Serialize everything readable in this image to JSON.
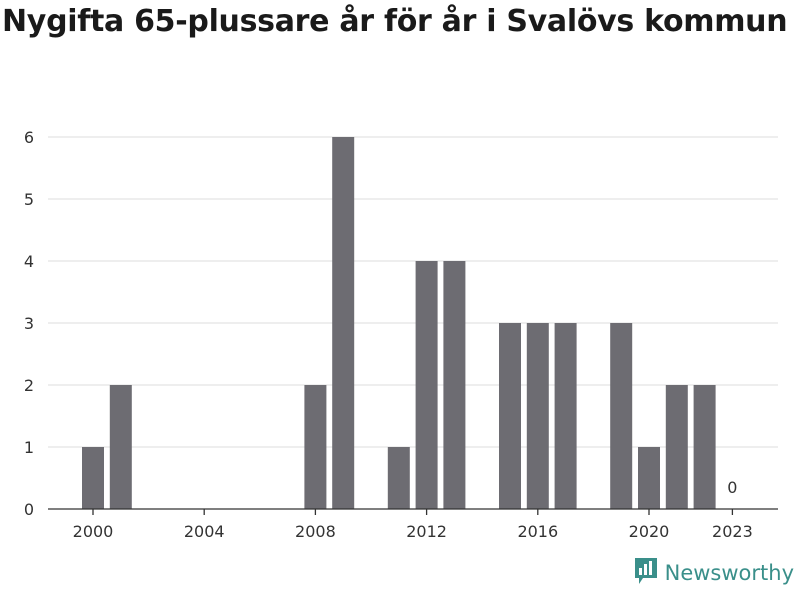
{
  "title": "Nygifta 65-plussare år för år i Svalövs kommun",
  "brand": {
    "name": "Newsworthy",
    "color": "#3a8f8a",
    "icon": "bar-chart-speech-bubble-icon"
  },
  "chart_data": {
    "type": "bar",
    "title": "Nygifta 65-plussare år för år i Svalövs kommun",
    "xlabel": "",
    "ylabel": "",
    "x": [
      2000,
      2001,
      2002,
      2003,
      2004,
      2005,
      2006,
      2007,
      2008,
      2009,
      2010,
      2011,
      2012,
      2013,
      2014,
      2015,
      2016,
      2017,
      2018,
      2019,
      2020,
      2021,
      2022,
      2023
    ],
    "values": [
      1,
      2,
      0,
      0,
      0,
      0,
      0,
      0,
      2,
      6,
      0,
      1,
      4,
      4,
      0,
      3,
      3,
      3,
      0,
      3,
      1,
      2,
      2,
      0
    ],
    "ylim": [
      0,
      6
    ],
    "yticks": [
      "0",
      "1",
      "2",
      "3",
      "4",
      "5",
      "6"
    ],
    "xticks": [
      "2000",
      "2004",
      "2008",
      "2012",
      "2016",
      "2020",
      "2023"
    ],
    "annotations": [
      {
        "x": 2023,
        "text": "0"
      }
    ],
    "bar_color": "#6d6c72",
    "grid": true,
    "legend": "none"
  }
}
